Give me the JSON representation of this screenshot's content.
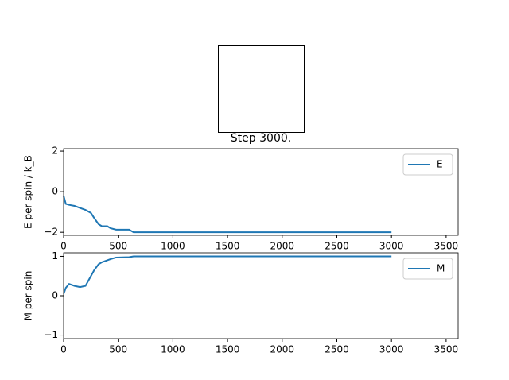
{
  "chart_data": [
    {
      "type": "line",
      "title": "Step 3000.",
      "ylabel": "E per spin / k_B",
      "x": [
        0,
        10,
        20,
        50,
        100,
        150,
        200,
        250,
        280,
        320,
        350,
        400,
        430,
        480,
        600,
        640,
        700,
        3000
      ],
      "series": [
        {
          "name": "E",
          "color": "#1f77b4",
          "values": [
            -0.2,
            -0.4,
            -0.6,
            -0.65,
            -0.7,
            -0.8,
            -0.9,
            -1.05,
            -1.3,
            -1.6,
            -1.7,
            -1.7,
            -1.8,
            -1.87,
            -1.87,
            -2.0,
            -2.0,
            -2.0
          ]
        }
      ],
      "xlim": [
        0,
        3610
      ],
      "xticks": [
        0,
        500,
        1000,
        1500,
        2000,
        2500,
        3000,
        3500
      ],
      "ylim": [
        -2.15,
        2.12
      ],
      "yticks": [
        {
          "value": -2,
          "label": "−2"
        },
        0,
        2
      ],
      "legend": "upper right"
    },
    {
      "type": "line",
      "ylabel": "M per spin",
      "x": [
        0,
        10,
        20,
        50,
        100,
        150,
        200,
        250,
        280,
        320,
        350,
        400,
        430,
        480,
        600,
        640,
        700,
        3000
      ],
      "series": [
        {
          "name": "M",
          "color": "#1f77b4",
          "values": [
            0.05,
            0.12,
            0.2,
            0.3,
            0.25,
            0.22,
            0.25,
            0.5,
            0.65,
            0.8,
            0.85,
            0.9,
            0.93,
            0.97,
            0.98,
            1.0,
            1.0,
            1.0
          ]
        }
      ],
      "xlim": [
        0,
        3610
      ],
      "xticks": [
        0,
        500,
        1000,
        1500,
        2000,
        2500,
        3000,
        3500
      ],
      "ylim": [
        -1.09,
        1.09
      ],
      "yticks": [
        {
          "value": -1,
          "label": "−1"
        },
        0,
        1
      ],
      "legend": "upper right"
    }
  ]
}
